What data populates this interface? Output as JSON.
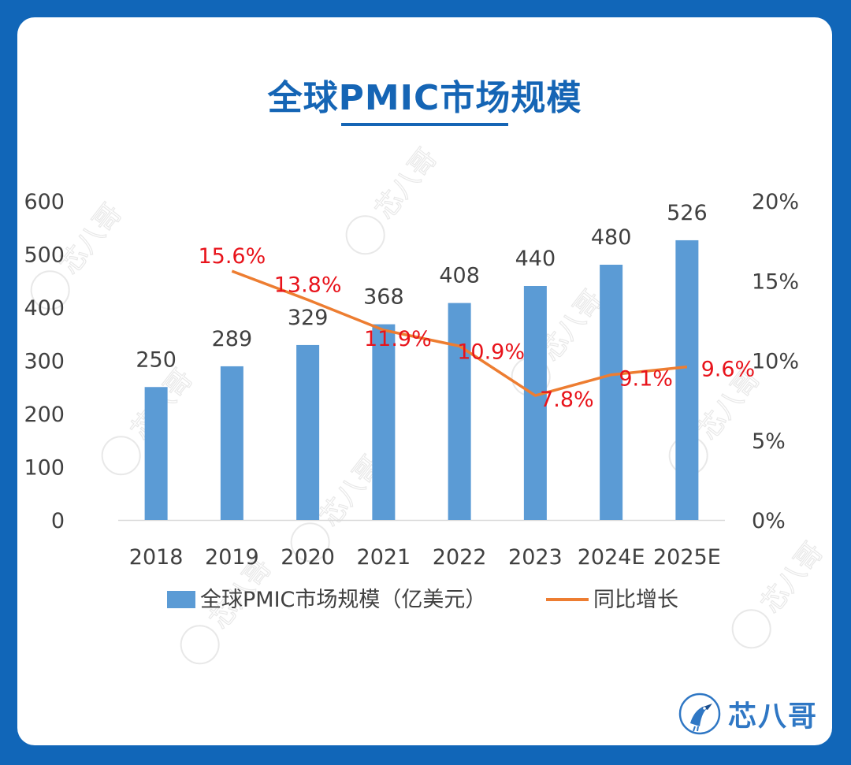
{
  "colors": {
    "background": "#1166b8",
    "title": "#1565b5",
    "bar": "#5b9bd5",
    "line": "#ed7d31",
    "growth_label": "#e8131b",
    "axis_text": "#404040",
    "watermark": "#bfbfbf"
  },
  "chart_data": {
    "type": "bar",
    "title": "全球PMIC市场规模",
    "categories": [
      "2018",
      "2019",
      "2020",
      "2021",
      "2022",
      "2023",
      "2024E",
      "2025E"
    ],
    "series": [
      {
        "name": "全球PMIC市场规模（亿美元）",
        "type": "bar",
        "axis": "left",
        "values": [
          250,
          289,
          329,
          368,
          408,
          440,
          480,
          526
        ],
        "labels": [
          "250",
          "289",
          "329",
          "368",
          "408",
          "440",
          "480",
          "526"
        ]
      },
      {
        "name": "同比增长",
        "type": "line",
        "axis": "right",
        "values": [
          null,
          15.6,
          13.8,
          11.9,
          10.9,
          7.8,
          9.1,
          9.6
        ],
        "labels": [
          "",
          "15.6%",
          "13.8%",
          "11.9%",
          "10.9%",
          "7.8%",
          "9.1%",
          "9.6%"
        ]
      }
    ],
    "y_left": {
      "ylim": [
        0,
        600
      ],
      "ticks": [
        "0",
        "100",
        "200",
        "300",
        "400",
        "500",
        "600"
      ]
    },
    "y_right": {
      "ylim": [
        0,
        20
      ],
      "ticks": [
        "0%",
        "5%",
        "10%",
        "15%",
        "20%"
      ]
    },
    "grid": false,
    "legend": "bottom"
  },
  "brand": {
    "name": "芯八哥",
    "watermark_text": "芯八哥",
    "icon": "kingfisher-bird-logo-icon"
  }
}
